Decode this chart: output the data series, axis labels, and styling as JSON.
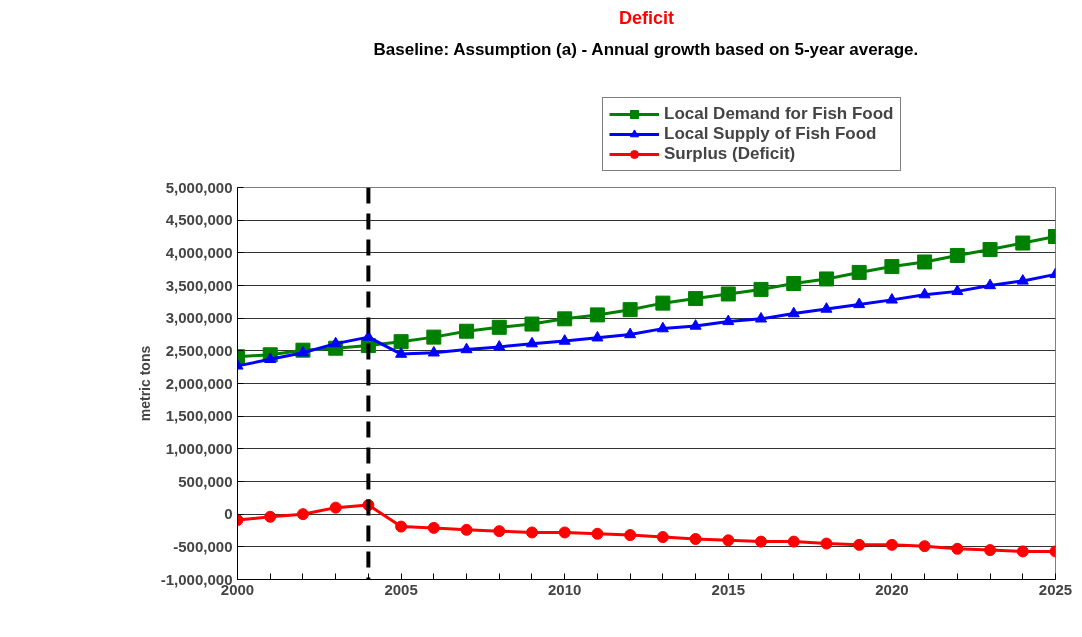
{
  "chart_data": {
    "type": "line",
    "title": "Deficit",
    "subtitle": "Baseline: Assumption (a) - Annual growth based on 5-year average.",
    "ylabel": "metric tons",
    "x": [
      2000,
      2001,
      2002,
      2003,
      2004,
      2005,
      2006,
      2007,
      2008,
      2009,
      2010,
      2011,
      2012,
      2013,
      2014,
      2015,
      2016,
      2017,
      2018,
      2019,
      2020,
      2021,
      2022,
      2023,
      2024,
      2025
    ],
    "series": [
      {
        "name": "Local Demand for Fish Food",
        "color": "#008000",
        "marker": "square",
        "values": [
          2410000,
          2440000,
          2510000,
          2540000,
          2580000,
          2640000,
          2710000,
          2800000,
          2860000,
          2910000,
          2990000,
          3050000,
          3130000,
          3230000,
          3300000,
          3370000,
          3440000,
          3530000,
          3600000,
          3700000,
          3790000,
          3860000,
          3960000,
          4050000,
          4150000,
          4250000
        ]
      },
      {
        "name": "Local Supply of Fish Food",
        "color": "#0000ff",
        "marker": "triangle",
        "values": [
          2270000,
          2370000,
          2470000,
          2610000,
          2710000,
          2450000,
          2470000,
          2520000,
          2560000,
          2610000,
          2650000,
          2700000,
          2750000,
          2840000,
          2880000,
          2950000,
          2990000,
          3070000,
          3140000,
          3210000,
          3280000,
          3360000,
          3410000,
          3500000,
          3570000,
          3670000
        ]
      },
      {
        "name": "Surplus (Deficit)",
        "color": "#ff0000",
        "marker": "circle",
        "values": [
          -90000,
          -40000,
          0,
          100000,
          140000,
          -190000,
          -210000,
          -240000,
          -260000,
          -280000,
          -280000,
          -300000,
          -320000,
          -350000,
          -380000,
          -400000,
          -420000,
          -420000,
          -450000,
          -470000,
          -470000,
          -490000,
          -530000,
          -550000,
          -570000,
          -570000
        ]
      }
    ],
    "xlim": [
      2000,
      2025
    ],
    "xticks": [
      2000,
      {
        "value": 2001,
        "label": null
      },
      {
        "value": 2002,
        "label": null
      },
      {
        "value": 2003,
        "label": null
      },
      {
        "value": 2004,
        "label": null
      },
      2005,
      {
        "value": 2006,
        "label": null
      },
      {
        "value": 2007,
        "label": null
      },
      {
        "value": 2008,
        "label": null
      },
      {
        "value": 2009,
        "label": null
      },
      2010,
      {
        "value": 2011,
        "label": null
      },
      {
        "value": 2012,
        "label": null
      },
      {
        "value": 2013,
        "label": null
      },
      {
        "value": 2014,
        "label": null
      },
      2015,
      {
        "value": 2016,
        "label": null
      },
      {
        "value": 2017,
        "label": null
      },
      {
        "value": 2018,
        "label": null
      },
      {
        "value": 2019,
        "label": null
      },
      2020,
      {
        "value": 2021,
        "label": null
      },
      {
        "value": 2022,
        "label": null
      },
      {
        "value": 2023,
        "label": null
      },
      {
        "value": 2024,
        "label": null
      },
      2025
    ],
    "ylim": [
      -1000000,
      5000000
    ],
    "yticks": [
      {
        "value": -1000000,
        "label": "-1,000,000"
      },
      {
        "value": -500000,
        "label": "-500,000"
      },
      0,
      {
        "value": 500000,
        "label": "500,000"
      },
      {
        "value": 1000000,
        "label": "1,000,000"
      },
      {
        "value": 1500000,
        "label": "1,500,000"
      },
      {
        "value": 2000000,
        "label": "2,000,000"
      },
      {
        "value": 2500000,
        "label": "2,500,000"
      },
      {
        "value": 3000000,
        "label": "3,000,000"
      },
      {
        "value": 3500000,
        "label": "3,500,000"
      },
      {
        "value": 4000000,
        "label": "4,000,000"
      },
      {
        "value": 4500000,
        "label": "4,500,000"
      },
      {
        "value": 5000000,
        "label": "5,000,000"
      }
    ],
    "ref_lines": [
      {
        "axis": "x",
        "value": 2004,
        "color": "#000000",
        "line_style": "dashed"
      }
    ],
    "grid": "y",
    "legend": "top",
    "line_style": "solid"
  }
}
